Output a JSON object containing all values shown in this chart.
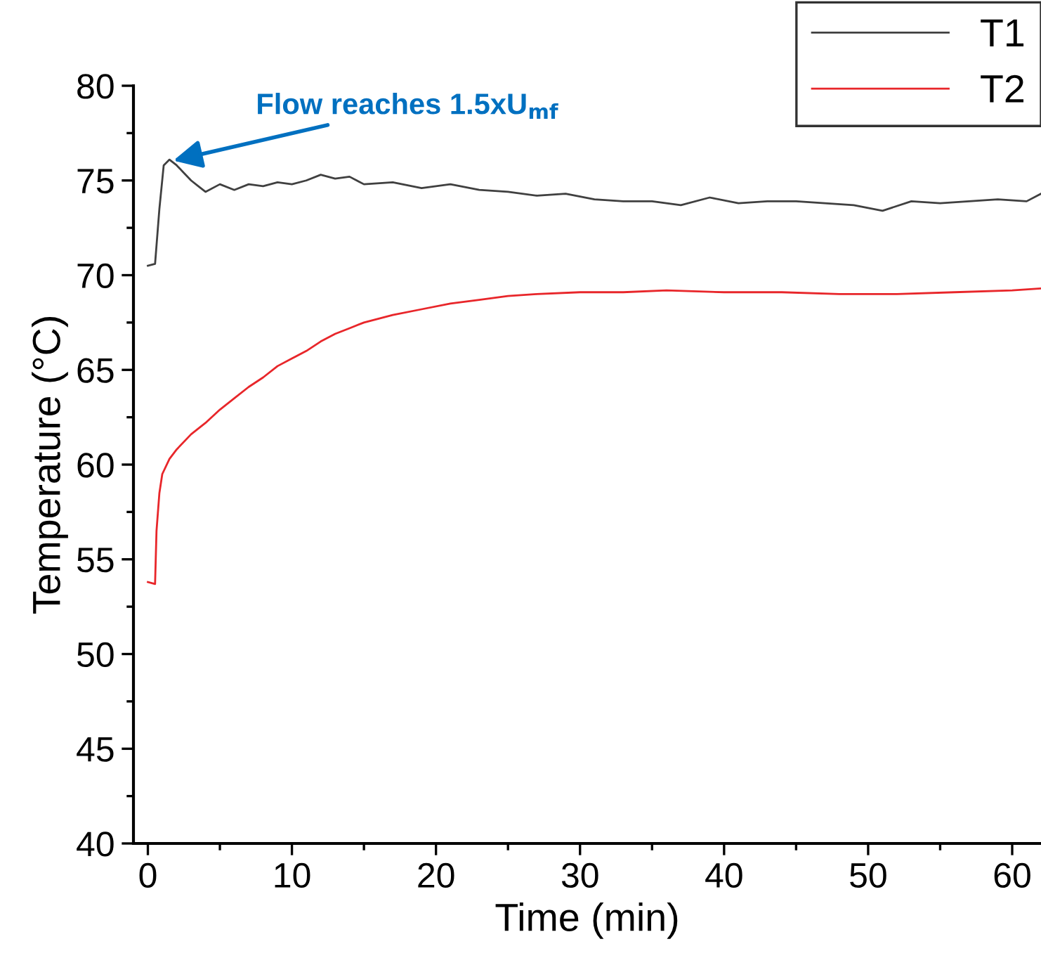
{
  "chart_data": {
    "type": "line",
    "xlabel": "Time (min)",
    "ylabel": "Temperature (°C)",
    "xlim": [
      -1,
      62
    ],
    "ylim": [
      40,
      80
    ],
    "xticks": [
      0,
      {
        "value": 5,
        "label": null
      },
      10,
      {
        "value": 15,
        "label": null
      },
      20,
      {
        "value": 25,
        "label": null
      },
      30,
      {
        "value": 35,
        "label": null
      },
      40,
      {
        "value": 45,
        "label": null
      },
      50,
      {
        "value": 55,
        "label": null
      },
      60
    ],
    "yticks": [
      40,
      {
        "value": 42.5,
        "label": null
      },
      45,
      {
        "value": 47.5,
        "label": null
      },
      50,
      {
        "value": 52.5,
        "label": null
      },
      55,
      {
        "value": 57.5,
        "label": null
      },
      60,
      {
        "value": 62.5,
        "label": null
      },
      65,
      {
        "value": 67.5,
        "label": null
      },
      70,
      {
        "value": 72.5,
        "label": null
      },
      75,
      {
        "value": 77.5,
        "label": null
      },
      80
    ],
    "grid": false,
    "legend": "top right",
    "marker": "none",
    "line_style": "solid",
    "annotations": [
      {
        "text": "Flow reaches 1.5xU$_{mf}$",
        "x": 1.5,
        "y": 76
      }
    ],
    "series": [
      {
        "name": "T1",
        "color": "#404040",
        "x": [
          0,
          0.5,
          0.8,
          1.1,
          1.5,
          2,
          2.5,
          3,
          3.5,
          4,
          5,
          6,
          7,
          8,
          9,
          10,
          11,
          12,
          13,
          14,
          15,
          17,
          19,
          21,
          23,
          25,
          27,
          29,
          31,
          33,
          35,
          37,
          39,
          41,
          43,
          45,
          47,
          49,
          51,
          53,
          55,
          57,
          59,
          61,
          62
        ],
        "values": [
          70.5,
          70.6,
          73.5,
          75.8,
          76.1,
          75.8,
          75.4,
          75.0,
          74.7,
          74.4,
          74.8,
          74.5,
          74.8,
          74.7,
          74.9,
          74.8,
          75.0,
          75.3,
          75.1,
          75.2,
          74.8,
          74.9,
          74.6,
          74.8,
          74.5,
          74.4,
          74.2,
          74.3,
          74.0,
          73.9,
          73.9,
          73.7,
          74.1,
          73.8,
          73.9,
          73.9,
          73.8,
          73.7,
          73.4,
          73.9,
          73.8,
          73.9,
          74.0,
          73.9,
          74.3
        ]
      },
      {
        "name": "T2",
        "color": "#e8262a",
        "x": [
          0,
          0.5,
          0.6,
          0.8,
          1.0,
          1.5,
          2,
          3,
          4,
          5,
          6,
          7,
          8,
          9,
          10,
          11,
          12,
          13,
          14,
          15,
          17,
          19,
          21,
          23,
          25,
          27,
          30,
          33,
          36,
          40,
          44,
          48,
          52,
          56,
          60,
          62
        ],
        "values": [
          53.8,
          53.7,
          56.5,
          58.5,
          59.5,
          60.3,
          60.8,
          61.6,
          62.2,
          62.9,
          63.5,
          64.1,
          64.6,
          65.2,
          65.6,
          66.0,
          66.5,
          66.9,
          67.2,
          67.5,
          67.9,
          68.2,
          68.5,
          68.7,
          68.9,
          69.0,
          69.1,
          69.1,
          69.2,
          69.1,
          69.1,
          69.0,
          69.0,
          69.1,
          69.2,
          69.3
        ]
      }
    ]
  }
}
